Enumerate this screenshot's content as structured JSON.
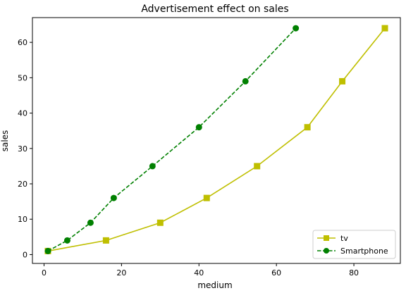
{
  "chart_data": {
    "type": "line",
    "title": "Advertisement effect on sales",
    "xlabel": "medium",
    "ylabel": "sales",
    "xlim": [
      -3,
      92
    ],
    "ylim": [
      -2.5,
      67
    ],
    "xticks": [
      0,
      20,
      40,
      60,
      80
    ],
    "yticks": [
      0,
      10,
      20,
      30,
      40,
      50,
      60
    ],
    "grid": false,
    "legend_position": "lower-right",
    "series": [
      {
        "name": "tv",
        "color": "#bfbf00",
        "line_style": "solid",
        "marker": "square",
        "x": [
          1,
          16,
          30,
          42,
          55,
          68,
          77,
          88
        ],
        "y": [
          1,
          4,
          9,
          16,
          25,
          36,
          49,
          64
        ]
      },
      {
        "name": "Smartphone",
        "color": "#008000",
        "line_style": "dashed",
        "marker": "circle",
        "x": [
          1,
          6,
          12,
          18,
          28,
          40,
          52,
          65
        ],
        "y": [
          1,
          4,
          9,
          16,
          25,
          36,
          49,
          64
        ]
      }
    ]
  }
}
